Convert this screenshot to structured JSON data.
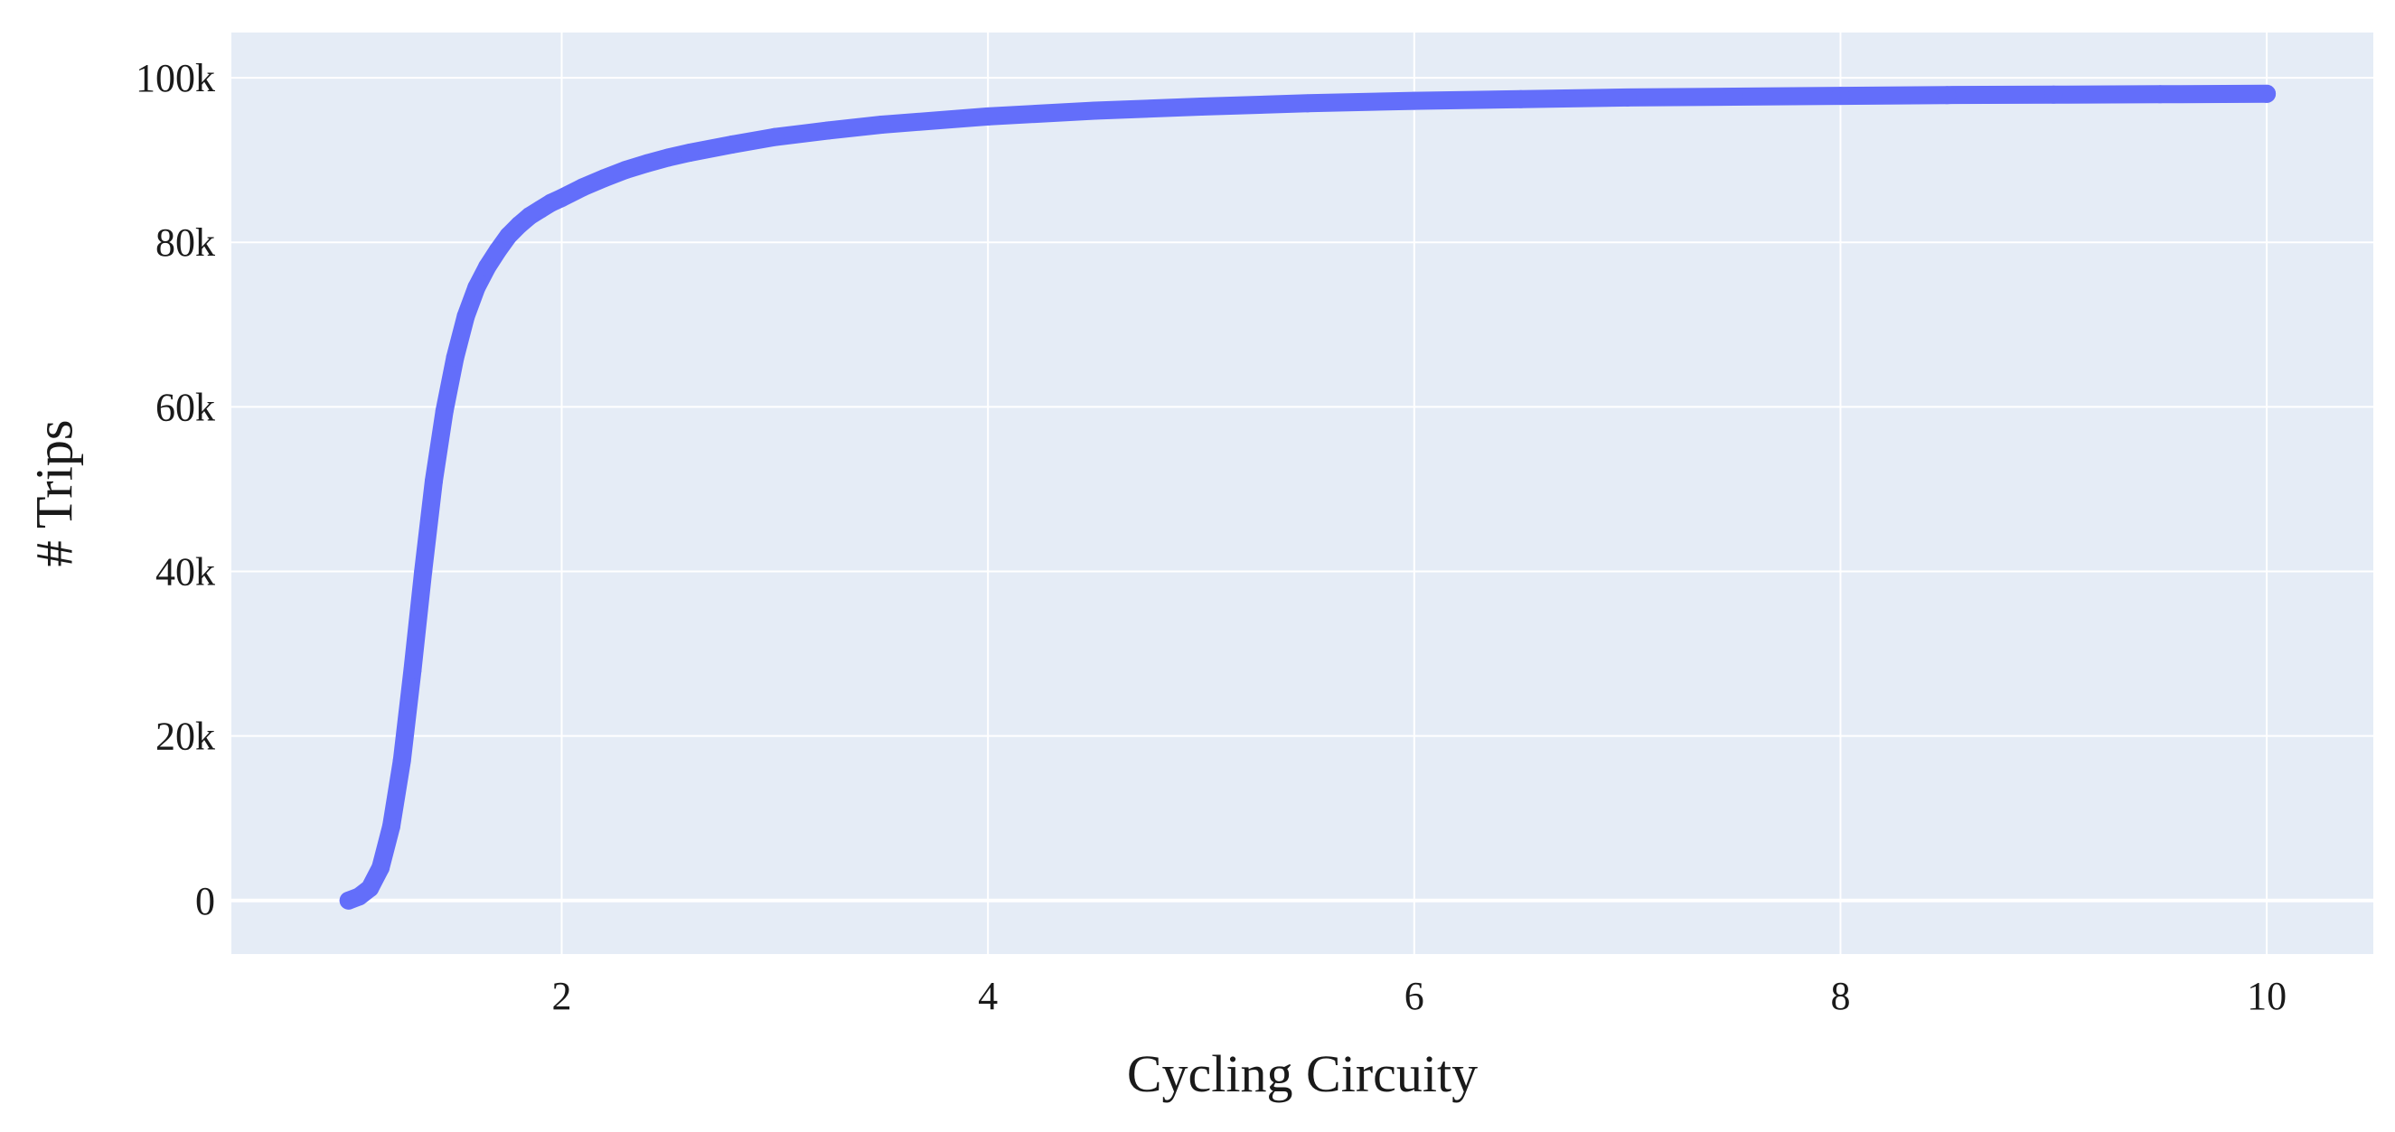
{
  "chart_data": {
    "type": "scatter",
    "title": "",
    "xlabel": "Cycling Circuity",
    "ylabel": "# Trips",
    "xlim": [
      0.45,
      10.5
    ],
    "ylim": [
      -6500,
      105500
    ],
    "x_ticks": [
      2,
      4,
      6,
      8,
      10
    ],
    "x_tick_labels": [
      "2",
      "4",
      "6",
      "8",
      "10"
    ],
    "y_ticks": [
      0,
      20000,
      40000,
      60000,
      80000,
      100000
    ],
    "y_tick_labels": [
      "0",
      "20k",
      "40k",
      "60k",
      "80k",
      "100k"
    ],
    "grid": true,
    "legend": "none",
    "colors": {
      "plot_background": "#e5ecf6",
      "grid": "#ffffff",
      "marker": "#636efa"
    },
    "series": [
      {
        "x": [
          1.0,
          1.05,
          1.1,
          1.15,
          1.2,
          1.25,
          1.3,
          1.35,
          1.4,
          1.45,
          1.5,
          1.55,
          1.6,
          1.65,
          1.7,
          1.75,
          1.8,
          1.85,
          1.9,
          1.95,
          2.0,
          2.1,
          2.2,
          2.3,
          2.4,
          2.5,
          2.6,
          2.8,
          3.0,
          3.25,
          3.5,
          4.0,
          4.5,
          5.0,
          5.5,
          6.0,
          6.5,
          7.0,
          7.5,
          8.0,
          8.5,
          9.0,
          9.5,
          10.0
        ],
        "y": [
          0,
          500,
          1500,
          4000,
          9000,
          17000,
          28000,
          40000,
          51000,
          59500,
          66000,
          71000,
          74500,
          77000,
          79000,
          80800,
          82100,
          83200,
          84000,
          84800,
          85400,
          86700,
          87800,
          88800,
          89600,
          90300,
          90900,
          91900,
          92800,
          93600,
          94300,
          95300,
          96000,
          96500,
          96900,
          97200,
          97400,
          97600,
          97700,
          97800,
          97900,
          97950,
          98000,
          98050
        ]
      }
    ]
  }
}
